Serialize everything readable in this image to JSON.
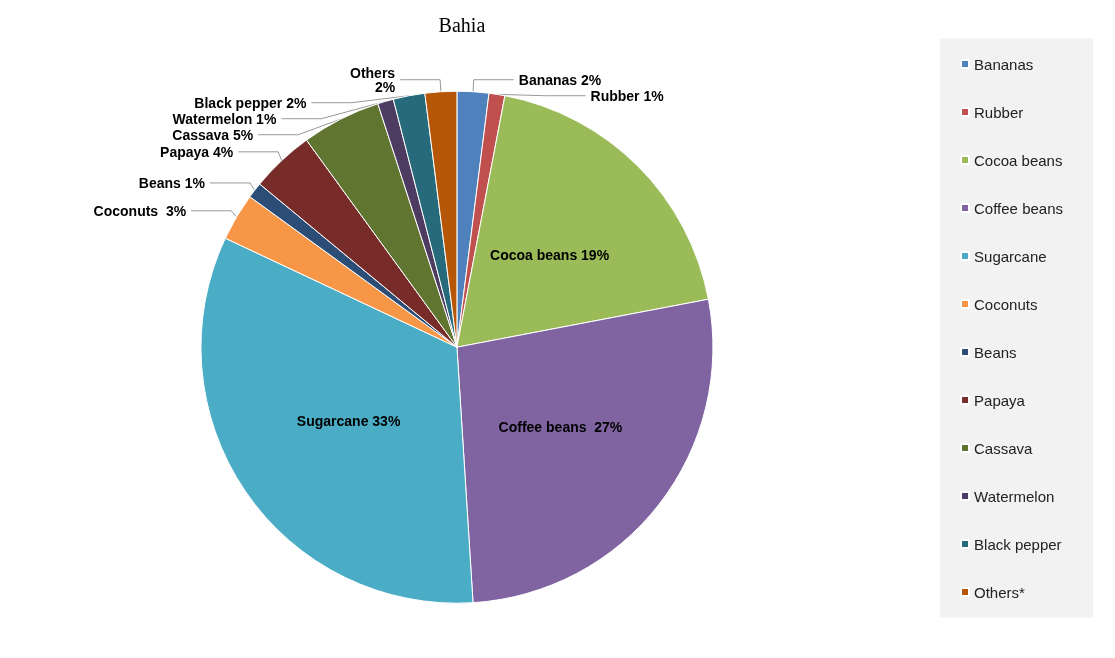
{
  "chart_data": {
    "type": "pie",
    "title": "Bahia",
    "categories": [
      "Bananas",
      "Rubber",
      "Cocoa beans",
      "Coffee beans",
      "Sugarcane",
      "Coconuts",
      "Beans",
      "Papaya",
      "Cassava",
      "Watermelon",
      "Black pepper",
      "Others*"
    ],
    "values": [
      2,
      1,
      19,
      27,
      33,
      3,
      1,
      4,
      5,
      1,
      2,
      2
    ],
    "value_labels": [
      "Bananas 2%",
      "Rubber 1%",
      "Cocoa beans 19%",
      "Coffee beans  27%",
      "Sugarcane 33%",
      "Coconuts  3%",
      "Beans 1%",
      "Papaya 4%",
      "Cassava 5%",
      "Watermelon 1%",
      "Black pepper 2%",
      "Others\n2%"
    ],
    "colors": [
      "#4f81bd",
      "#c0504d",
      "#9bbb59",
      "#8064a2",
      "#4bacc6",
      "#f79646",
      "#2c4d75",
      "#772c2a",
      "#5f7530",
      "#4d3b62",
      "#276a7c",
      "#b65708"
    ],
    "legend": "right"
  }
}
